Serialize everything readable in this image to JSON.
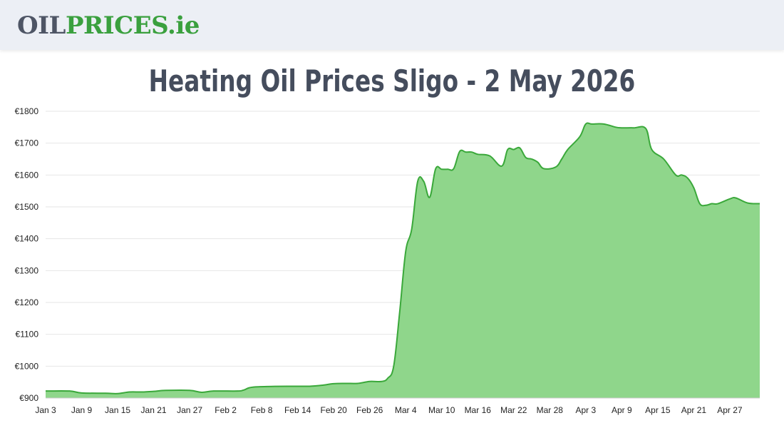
{
  "header": {
    "logo": {
      "part1": "OIL",
      "part2": "PRICES",
      "part3": ".ie"
    }
  },
  "title": "Heating Oil Prices Sligo - 2 May 2026",
  "colors": {
    "line": "#3aa83a",
    "fill": "#8fd68b",
    "grid": "#e6e6e6",
    "logo_green": "#3aa03e",
    "logo_gray": "#4e5565"
  },
  "chart_data": {
    "type": "area",
    "title": "Heating Oil Prices Sligo - 2 May 2026",
    "xlabel": "",
    "ylabel": "",
    "ylim": [
      900,
      1800
    ],
    "yticks": [
      900,
      1000,
      1100,
      1200,
      1300,
      1400,
      1500,
      1600,
      1700,
      1800
    ],
    "ytick_labels": [
      "€900",
      "€1000",
      "€1100",
      "€1200",
      "€1300",
      "€1400",
      "€1500",
      "€1600",
      "€1700",
      "€1800"
    ],
    "xlim": [
      "2026-01-03",
      "2026-05-02"
    ],
    "xticks": [
      {
        "date": "2026-01-03",
        "label": "Jan 3"
      },
      {
        "date": "2026-01-09",
        "label": "Jan 9"
      },
      {
        "date": "2026-01-15",
        "label": "Jan 15"
      },
      {
        "date": "2026-01-21",
        "label": "Jan 21"
      },
      {
        "date": "2026-01-27",
        "label": "Jan 27"
      },
      {
        "date": "2026-02-02",
        "label": "Feb 2"
      },
      {
        "date": "2026-02-08",
        "label": "Feb 8"
      },
      {
        "date": "2026-02-14",
        "label": "Feb 14"
      },
      {
        "date": "2026-02-20",
        "label": "Feb 20"
      },
      {
        "date": "2026-02-26",
        "label": "Feb 26"
      },
      {
        "date": "2026-03-04",
        "label": "Mar 4"
      },
      {
        "date": "2026-03-10",
        "label": "Mar 10"
      },
      {
        "date": "2026-03-16",
        "label": "Mar 16"
      },
      {
        "date": "2026-03-22",
        "label": "Mar 22"
      },
      {
        "date": "2026-03-28",
        "label": "Mar 28"
      },
      {
        "date": "2026-04-03",
        "label": "Apr 3"
      },
      {
        "date": "2026-04-09",
        "label": "Apr 9"
      },
      {
        "date": "2026-04-15",
        "label": "Apr 15"
      },
      {
        "date": "2026-04-21",
        "label": "Apr 21"
      },
      {
        "date": "2026-04-27",
        "label": "Apr 27"
      }
    ],
    "grid": true,
    "legend": "none",
    "series": [
      {
        "x": [
          "2026-01-03",
          "2026-01-07",
          "2026-01-09",
          "2026-01-13",
          "2026-01-15",
          "2026-01-17",
          "2026-01-19",
          "2026-01-21",
          "2026-01-23",
          "2026-01-27",
          "2026-01-29",
          "2026-01-31",
          "2026-02-04",
          "2026-02-05",
          "2026-02-07",
          "2026-02-14",
          "2026-02-16",
          "2026-02-18",
          "2026-02-20",
          "2026-02-22",
          "2026-02-24",
          "2026-02-26",
          "2026-02-28",
          "2026-03-01",
          "2026-03-02",
          "2026-03-03",
          "2026-03-04",
          "2026-03-05",
          "2026-03-06",
          "2026-03-07",
          "2026-03-08",
          "2026-03-09",
          "2026-03-10",
          "2026-03-11",
          "2026-03-12",
          "2026-03-13",
          "2026-03-14",
          "2026-03-15",
          "2026-03-16",
          "2026-03-18",
          "2026-03-20",
          "2026-03-21",
          "2026-03-22",
          "2026-03-23",
          "2026-03-24",
          "2026-03-25",
          "2026-03-26",
          "2026-03-27",
          "2026-03-29",
          "2026-03-30",
          "2026-03-31",
          "2026-04-02",
          "2026-04-03",
          "2026-04-04",
          "2026-04-06",
          "2026-04-08",
          "2026-04-09",
          "2026-04-11",
          "2026-04-13",
          "2026-04-14",
          "2026-04-16",
          "2026-04-18",
          "2026-04-19",
          "2026-04-20",
          "2026-04-21",
          "2026-04-22",
          "2026-04-23",
          "2026-04-24",
          "2026-04-25",
          "2026-04-27",
          "2026-04-28",
          "2026-04-30",
          "2026-05-02"
        ],
        "values": [
          922,
          922,
          916,
          915,
          914,
          919,
          919,
          921,
          924,
          924,
          918,
          922,
          922,
          925,
          935,
          937,
          937,
          940,
          945,
          946,
          946,
          952,
          952,
          962,
          1000,
          1170,
          1360,
          1430,
          1580,
          1580,
          1530,
          1620,
          1618,
          1618,
          1620,
          1674,
          1672,
          1672,
          1665,
          1660,
          1628,
          1680,
          1680,
          1685,
          1655,
          1650,
          1640,
          1620,
          1625,
          1650,
          1680,
          1720,
          1760,
          1760,
          1760,
          1750,
          1748,
          1748,
          1746,
          1680,
          1650,
          1600,
          1600,
          1590,
          1560,
          1510,
          1505,
          1510,
          1510,
          1525,
          1528,
          1512,
          1510
        ]
      }
    ]
  }
}
